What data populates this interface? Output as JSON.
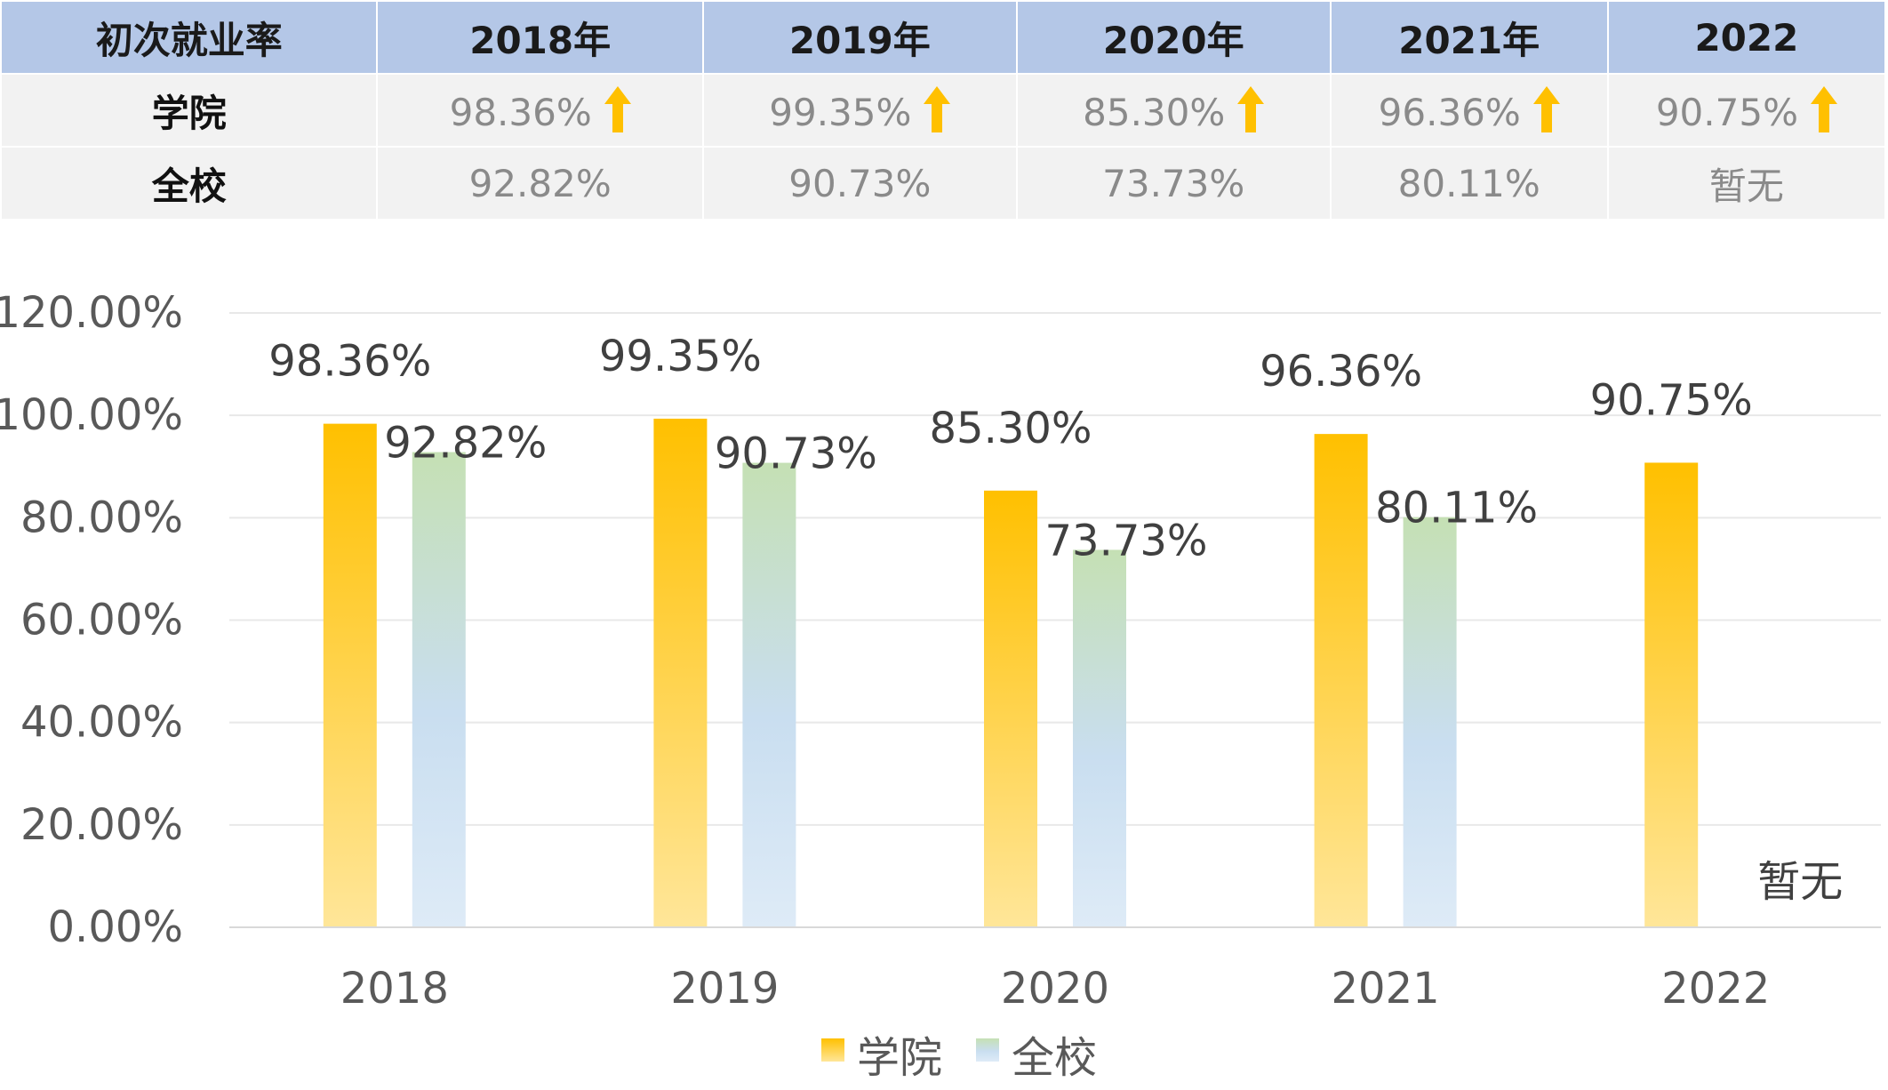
{
  "table": {
    "header": [
      "初次就业率",
      "2018年",
      "2019年",
      "2020年",
      "2021年",
      "2022"
    ],
    "rows": [
      {
        "label": "学院",
        "cells": [
          "98.36%",
          "99.35%",
          "85.30%",
          "96.36%",
          "90.75%"
        ],
        "arrow": true
      },
      {
        "label": "全校",
        "cells": [
          "92.82%",
          "90.73%",
          "73.73%",
          "80.11%",
          "暂无"
        ],
        "arrow": false
      }
    ],
    "arrow_icon": "up-arrow-icon",
    "colors": {
      "header_bg": "#b4c7e7",
      "row_bg": "#f2f2f2",
      "arrow": "#ffc000"
    }
  },
  "chart_data": {
    "type": "bar",
    "categories": [
      "2018",
      "2019",
      "2020",
      "2021",
      "2022"
    ],
    "series": [
      {
        "name": "学院",
        "values": [
          98.36,
          99.35,
          85.3,
          96.36,
          90.75
        ],
        "labels": [
          "98.36%",
          "99.35%",
          "85.30%",
          "96.36%",
          "90.75%"
        ],
        "color_top": "#ffc000",
        "color_bottom": "#ffe699"
      },
      {
        "name": "全校",
        "values": [
          92.82,
          90.73,
          73.73,
          80.11,
          null
        ],
        "labels": [
          "92.82%",
          "90.73%",
          "73.73%",
          "80.11%",
          "暂无"
        ],
        "color_top": "#c5e0b4",
        "color_bottom": "#deebf7"
      }
    ],
    "ylim": [
      0,
      120
    ],
    "yticks": [
      "0.00%",
      "20.00%",
      "40.00%",
      "60.00%",
      "80.00%",
      "100.00%",
      "120.00%"
    ],
    "grid": true,
    "legend": "bottom-center"
  }
}
